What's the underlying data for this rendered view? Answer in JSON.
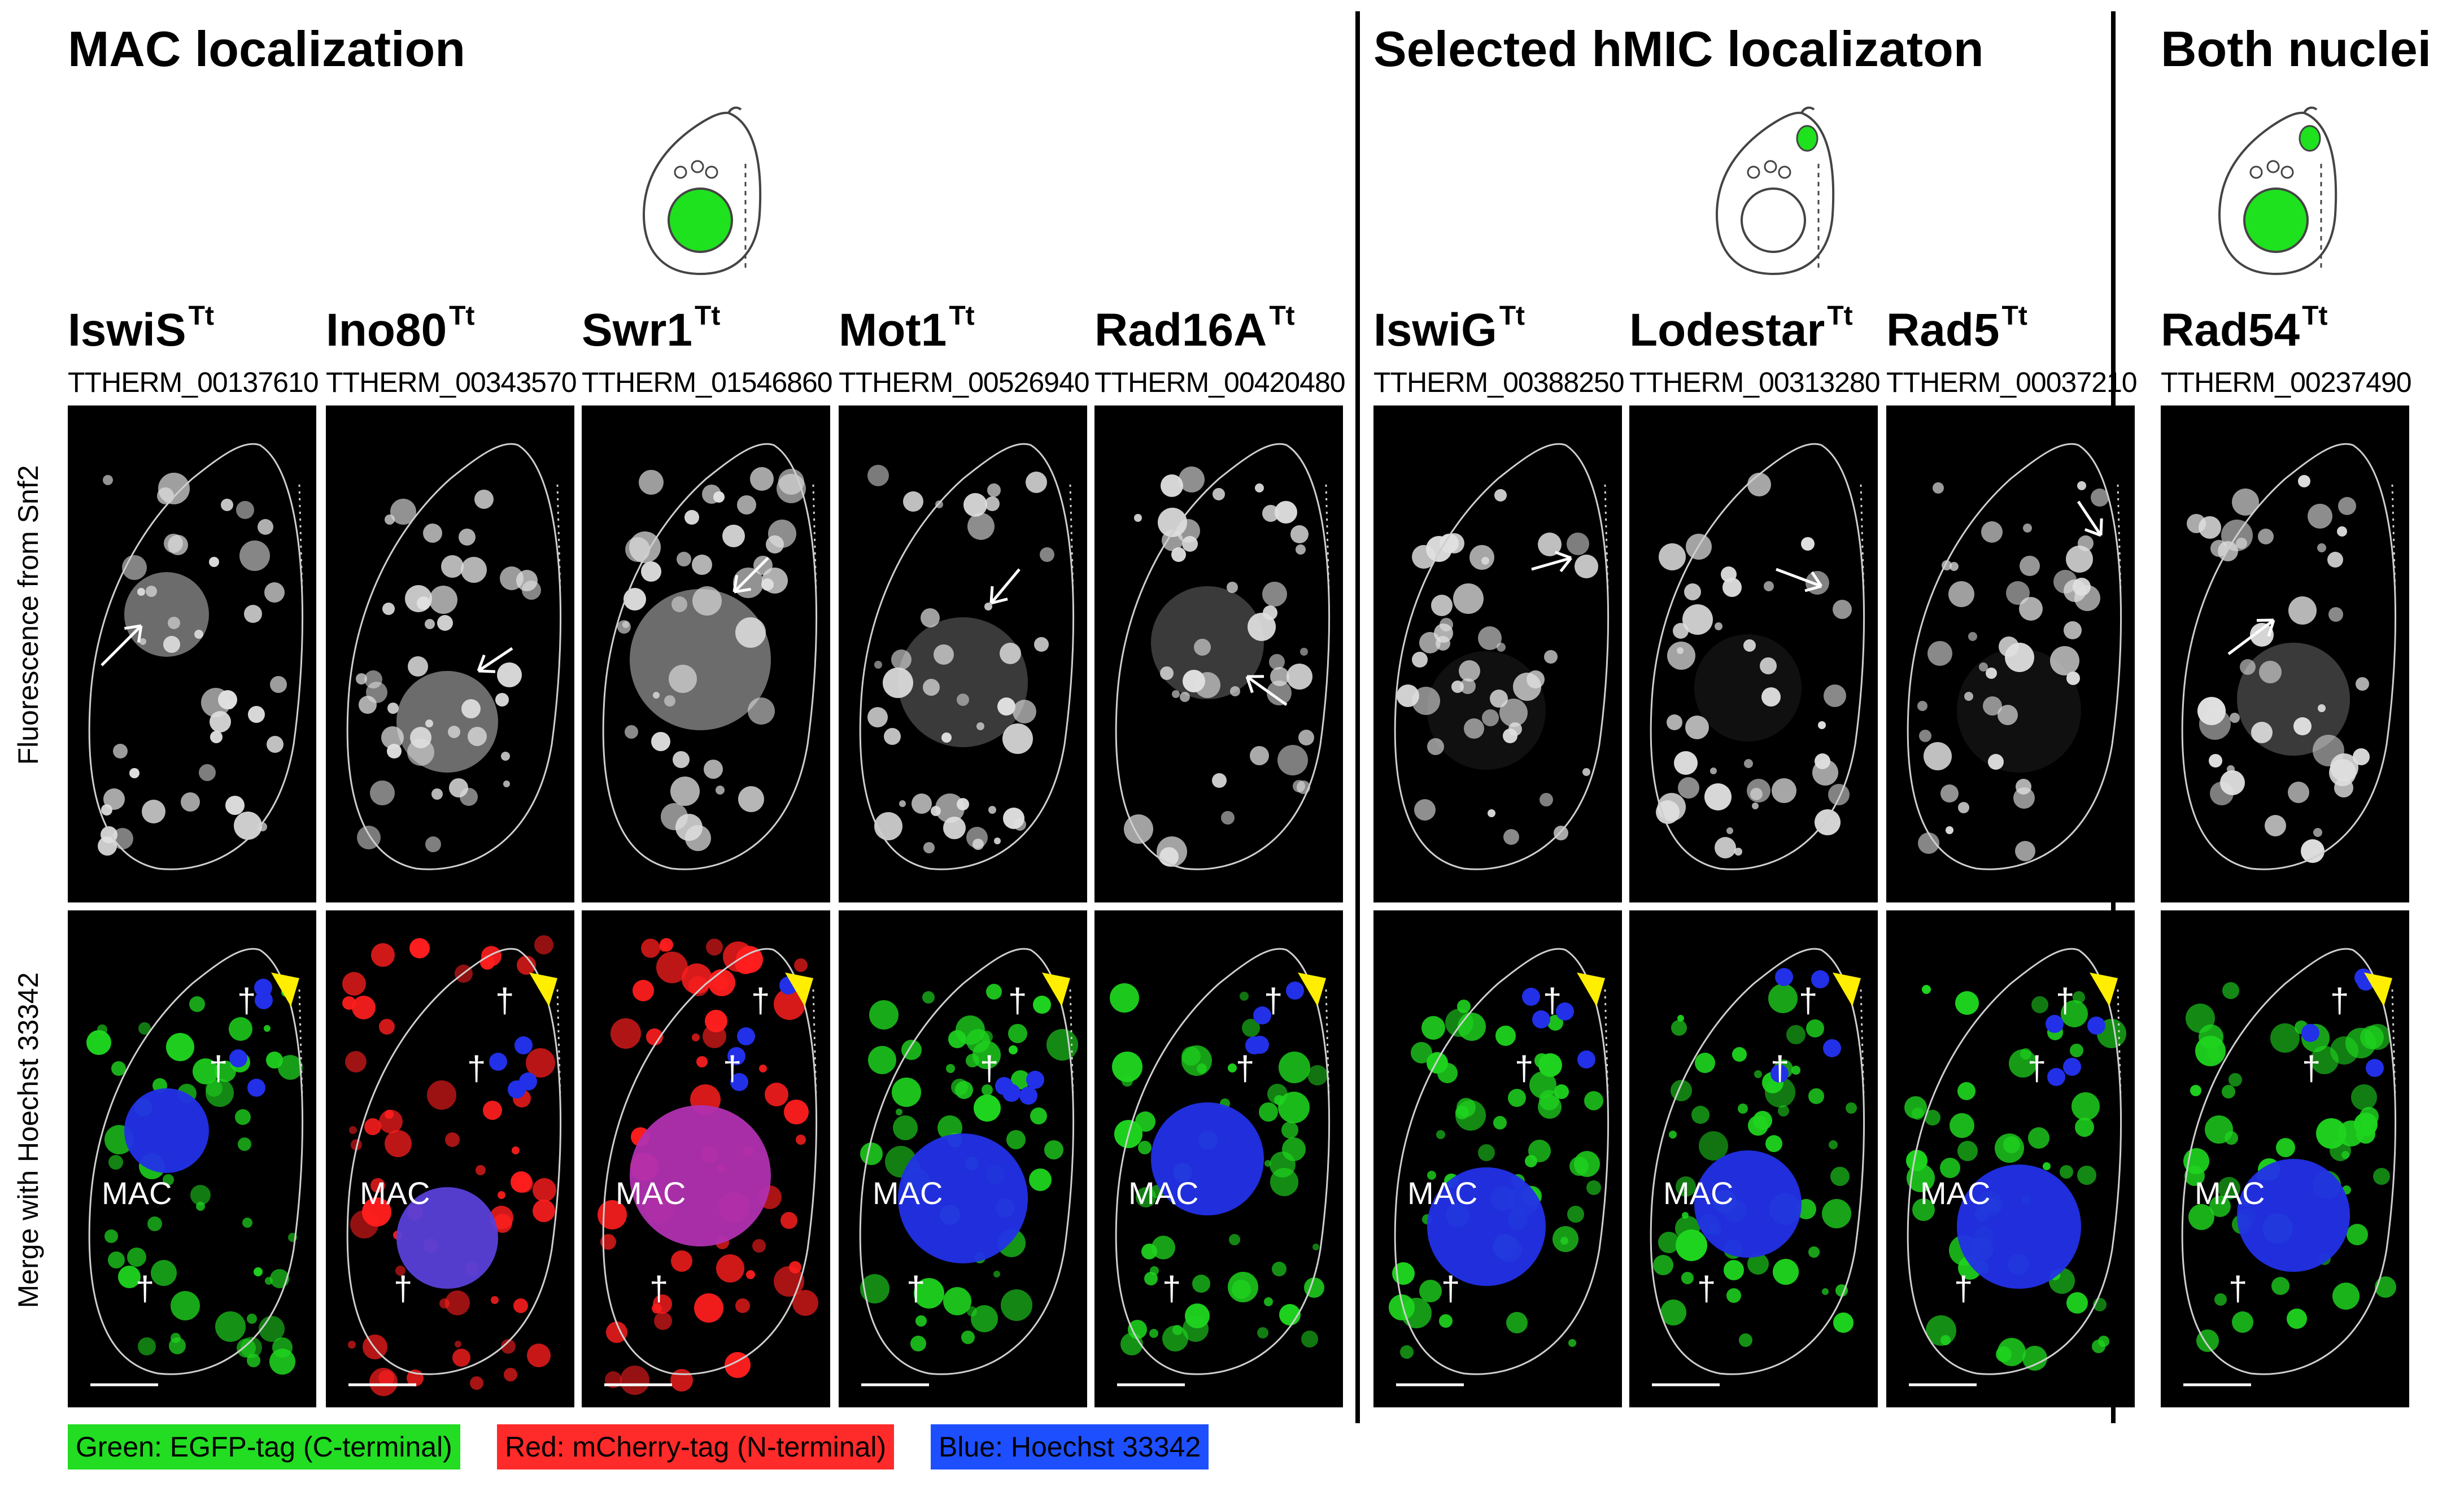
{
  "sections": [
    {
      "title": "MAC localization"
    },
    {
      "title": "Selected hMIC localizaton"
    },
    {
      "title": "Both nuclei"
    }
  ],
  "row_labels": {
    "top": "Fluorescence from Snf2",
    "bottom": "Merge with Hoechst 33342"
  },
  "proteins": [
    {
      "name": "IswiS",
      "sup": "Tt",
      "id": "TTHERM_00137610"
    },
    {
      "name": "Ino80",
      "sup": "Tt",
      "id": "TTHERM_00343570"
    },
    {
      "name": "Swr1",
      "sup": "Tt",
      "id": "TTHERM_01546860"
    },
    {
      "name": "Mot1",
      "sup": "Tt",
      "id": "TTHERM_00526940"
    },
    {
      "name": "Rad16A",
      "sup": "Tt",
      "id": "TTHERM_00420480"
    },
    {
      "name": "IswiG",
      "sup": "Tt",
      "id": "TTHERM_00388250"
    },
    {
      "name": "Lodestar",
      "sup": "Tt",
      "id": "TTHERM_00313280"
    },
    {
      "name": "Rad5",
      "sup": "Tt",
      "id": "TTHERM_00037210"
    },
    {
      "name": "Rad54",
      "sup": "Tt",
      "id": "TTHERM_00237490"
    }
  ],
  "annotations": {
    "mac_label": "MAC",
    "dagger": "†"
  },
  "legend": [
    {
      "text": "Green:  EGFP-tag (C-terminal)",
      "color": "#22dd22"
    },
    {
      "text": "Red:  mCherry-tag (N-terminal)",
      "color": "#ff2a2a"
    },
    {
      "text": "Blue:  Hoechst 33342",
      "color": "#1e4fff"
    }
  ],
  "colors": {
    "green": "#1fd41f",
    "red": "#ff1e1e",
    "blue": "#2230e8",
    "yellow_arrowhead": "#ffee00"
  }
}
